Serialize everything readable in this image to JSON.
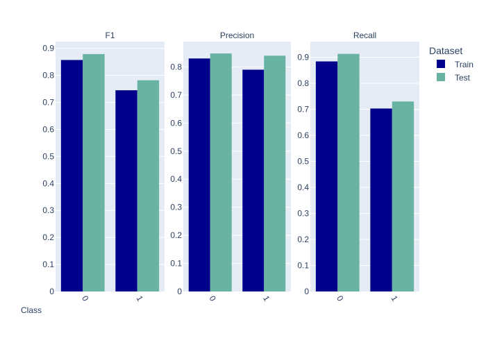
{
  "chart_data": {
    "type": "bar",
    "categories": [
      "0",
      "1"
    ],
    "xlabel": "Class",
    "legend": {
      "title": "Dataset",
      "placement": "right",
      "entries": [
        "Train",
        "Test"
      ]
    },
    "colors": {
      "Train": "#00008b",
      "Test": "#69b3a2",
      "plot_bg": "#e5ecf6"
    },
    "grid": true,
    "panels": [
      {
        "title": "F1",
        "ylim": [
          0,
          0.925
        ],
        "yticks": [
          "0",
          "0.1",
          "0.2",
          "0.3",
          "0.4",
          "0.5",
          "0.6",
          "0.7",
          "0.8",
          "0.9"
        ],
        "series": [
          {
            "name": "Train",
            "values": [
              0.857,
              0.745
            ]
          },
          {
            "name": "Test",
            "values": [
              0.879,
              0.782
            ]
          }
        ]
      },
      {
        "title": "Precision",
        "ylim": [
          0,
          0.89
        ],
        "yticks": [
          "0",
          "0.1",
          "0.2",
          "0.3",
          "0.4",
          "0.5",
          "0.6",
          "0.7",
          "0.8"
        ],
        "series": [
          {
            "name": "Train",
            "values": [
              0.83,
              0.79
            ]
          },
          {
            "name": "Test",
            "values": [
              0.848,
              0.84
            ]
          }
        ]
      },
      {
        "title": "Recall",
        "ylim": [
          0,
          0.96
        ],
        "yticks": [
          "0",
          "0.1",
          "0.2",
          "0.3",
          "0.4",
          "0.5",
          "0.6",
          "0.7",
          "0.8",
          "0.9"
        ],
        "series": [
          {
            "name": "Train",
            "values": [
              0.884,
              0.703
            ]
          },
          {
            "name": "Test",
            "values": [
              0.913,
              0.73
            ]
          }
        ]
      }
    ]
  }
}
